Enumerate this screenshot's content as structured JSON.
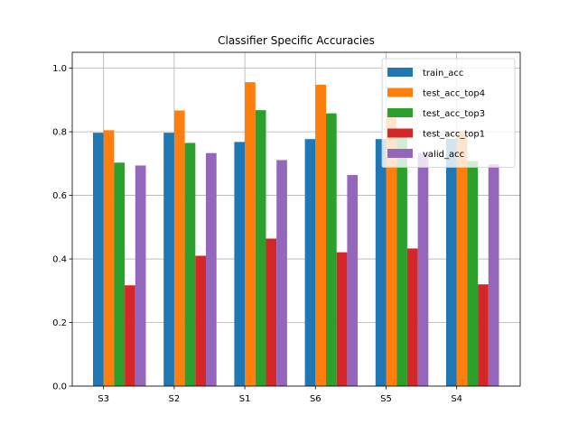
{
  "chart_data": {
    "type": "bar",
    "title": "Classifier Specific Accuracies",
    "xlabel": "",
    "ylabel": "",
    "categories": [
      "S3",
      "S2",
      "S1",
      "S6",
      "S5",
      "S4"
    ],
    "ylim": [
      0,
      1.05
    ],
    "yticks": [
      "0.0",
      "0.2",
      "0.4",
      "0.6",
      "0.8",
      "1.0"
    ],
    "grid": true,
    "legend_position": "top-right",
    "series": [
      {
        "name": "train_acc",
        "color": "#1f77b4",
        "values": [
          0.797,
          0.797,
          0.768,
          0.777,
          0.777,
          0.778
        ]
      },
      {
        "name": "test_acc_top4",
        "color": "#ff7f0e",
        "values": [
          0.805,
          0.867,
          0.956,
          0.948,
          0.862,
          0.8
        ]
      },
      {
        "name": "test_acc_top3",
        "color": "#2ca02c",
        "values": [
          0.703,
          0.765,
          0.868,
          0.858,
          0.787,
          0.708
        ]
      },
      {
        "name": "test_acc_top1",
        "color": "#d62728",
        "values": [
          0.317,
          0.41,
          0.464,
          0.421,
          0.433,
          0.32
        ]
      },
      {
        "name": "valid_acc",
        "color": "#9467bd",
        "values": [
          0.694,
          0.733,
          0.711,
          0.664,
          0.733,
          0.698
        ]
      }
    ]
  }
}
